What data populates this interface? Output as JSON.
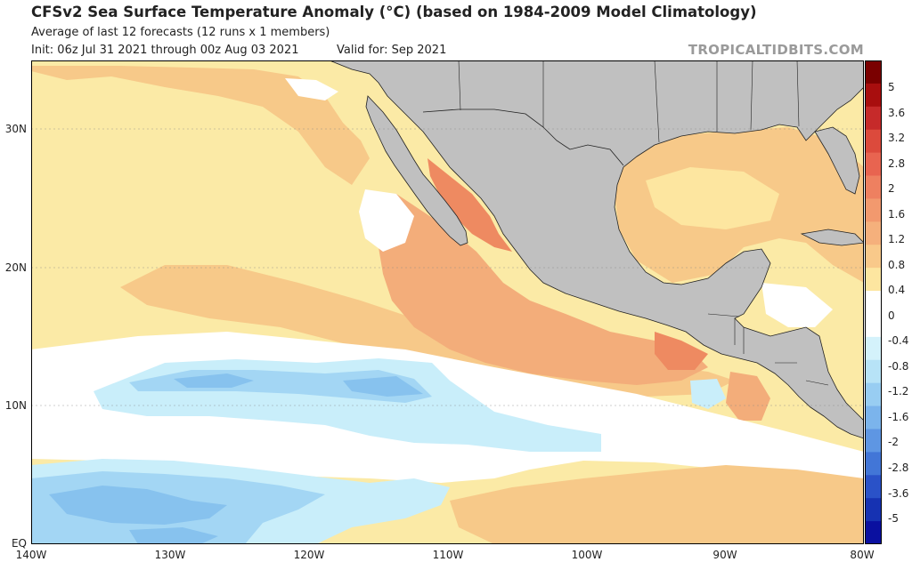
{
  "header": {
    "title": "CFSv2 Sea Surface Temperature Anomaly (°C) (based on 1984-2009 Model Climatology)",
    "line1": "Average of last 12 forecasts (12 runs x 1 members)",
    "line2": "Init: 06z Jul 31 2021 through 00z Aug 03 2021",
    "valid": "Valid for: Sep 2021",
    "brand": "TROPICALTIDBITS.COM"
  },
  "axes": {
    "lat_ticks": [
      "30N",
      "20N",
      "10N",
      "EQ"
    ],
    "lon_ticks": [
      "140W",
      "130W",
      "120W",
      "110W",
      "100W",
      "90W",
      "80W"
    ]
  },
  "colorbar": {
    "labels": [
      "5",
      "3.6",
      "3.2",
      "2.8",
      "2",
      "1.6",
      "1.2",
      "0.8",
      "0.4",
      "0",
      "-0.4",
      "-0.8",
      "-1.2",
      "-1.6",
      "-2",
      "-2.8",
      "-3.6",
      "-5"
    ],
    "colors": [
      "#7a0000",
      "#a80e0e",
      "#c62a2a",
      "#dc4a3c",
      "#e86450",
      "#ee8060",
      "#f2996e",
      "#f5b07c",
      "#f9c98a",
      "#fde6a0",
      "#ffffff",
      "#ffffff",
      "#d4f2fb",
      "#b7e3f7",
      "#98cdf2",
      "#7bb4ec",
      "#5e96e3",
      "#4276d7",
      "#2a52c8",
      "#1632b2",
      "#0a10a0"
    ]
  },
  "colors": {
    "land": "#c0c0c0",
    "ocean_base": "#fbeaa6",
    "warm1": "#f7c989",
    "warm2": "#f3ad7a",
    "warm3": "#ee8a61",
    "cool1": "#c9eefa",
    "cool2": "#a3d6f4",
    "cool3": "#87c2ee"
  }
}
